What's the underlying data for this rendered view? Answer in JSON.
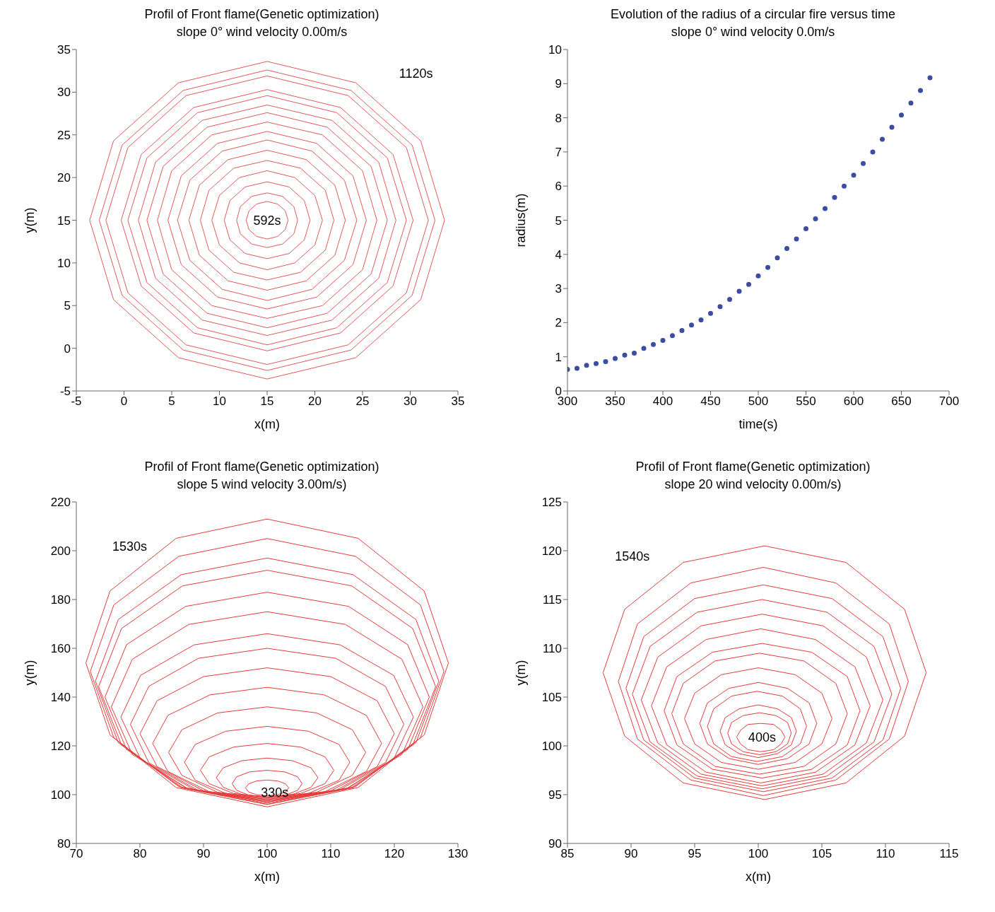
{
  "chart_data": [
    {
      "type": "line",
      "title": "Profil of Front flame(Genetic optimization)",
      "subtitle": "slope 0° wind velocity 0.00m/s",
      "xlabel": "x(m)",
      "ylabel": "y(m)",
      "marker": "none",
      "xlim": [
        -5,
        35
      ],
      "xticks": [
        -5,
        0,
        5,
        10,
        15,
        20,
        25,
        30,
        35
      ],
      "ylim": [
        -5,
        35
      ],
      "yticks": [
        -5,
        0,
        5,
        10,
        15,
        20,
        25,
        30,
        35
      ],
      "annotations": [
        "1120s",
        "592s"
      ],
      "series": [
        {
          "color": "#e05a5a",
          "x": [
            -3.6,
            -1.1,
            5.7,
            15,
            24.3,
            31.1,
            33.6
          ],
          "values": [
            15,
            24.3,
            31.1,
            33.6,
            31.1,
            24.3,
            15
          ]
        },
        {
          "color": "#e05a5a",
          "x": [
            -3.6,
            -1.1,
            5.7,
            15,
            24.3,
            31.1,
            33.6
          ],
          "values": [
            15,
            5.7,
            -1.1,
            -3.6,
            -1.1,
            5.7,
            15
          ]
        },
        {
          "color": "#e05a5a",
          "x": [
            -2.6,
            -0.2,
            6.2,
            15,
            23.8,
            30.2,
            32.6
          ],
          "values": [
            15,
            23.8,
            30.2,
            32.6,
            30.2,
            23.8,
            15
          ]
        },
        {
          "color": "#e05a5a",
          "x": [
            -2.6,
            -0.2,
            6.2,
            15,
            23.8,
            30.2,
            32.6
          ],
          "values": [
            15,
            6.2,
            -0.2,
            -2.6,
            -0.2,
            6.2,
            15
          ]
        },
        {
          "color": "#e05a5a",
          "x": [
            -1.9,
            0.4,
            6.5,
            15,
            23.5,
            29.6,
            31.9
          ],
          "values": [
            15,
            23.5,
            29.6,
            31.9,
            29.6,
            23.5,
            15
          ]
        },
        {
          "color": "#e05a5a",
          "x": [
            -1.9,
            0.4,
            6.5,
            15,
            23.5,
            29.6,
            31.9
          ],
          "values": [
            15,
            6.5,
            0.4,
            -1.9,
            0.4,
            6.5,
            15
          ]
        },
        {
          "color": "#e05a5a",
          "x": [
            -0.3,
            1.8,
            7.3,
            15,
            22.7,
            28.2,
            30.3
          ],
          "values": [
            15,
            22.7,
            28.2,
            30.3,
            28.2,
            22.7,
            15
          ]
        },
        {
          "color": "#e05a5a",
          "x": [
            -0.3,
            1.8,
            7.3,
            15,
            22.7,
            28.2,
            30.3
          ],
          "values": [
            15,
            7.3,
            1.8,
            -0.3,
            1.8,
            7.3,
            15
          ]
        },
        {
          "color": "#e05a5a",
          "x": [
            0.4,
            2.4,
            7.7,
            15,
            22.3,
            27.6,
            29.6
          ],
          "values": [
            15,
            22.3,
            27.6,
            29.6,
            27.6,
            22.3,
            15
          ]
        },
        {
          "color": "#e05a5a",
          "x": [
            0.4,
            2.4,
            7.7,
            15,
            22.3,
            27.6,
            29.6
          ],
          "values": [
            15,
            7.7,
            2.4,
            0.4,
            2.4,
            7.7,
            15
          ]
        },
        {
          "color": "#e05a5a",
          "x": [
            1.5,
            3.3,
            8.2,
            15,
            21.8,
            26.7,
            28.5
          ],
          "values": [
            15,
            21.8,
            26.7,
            28.5,
            26.7,
            21.8,
            15
          ]
        },
        {
          "color": "#e05a5a",
          "x": [
            1.5,
            3.3,
            8.2,
            15,
            21.8,
            26.7,
            28.5
          ],
          "values": [
            15,
            8.2,
            3.3,
            1.5,
            3.3,
            8.2,
            15
          ]
        },
        {
          "color": "#e05a5a",
          "x": [
            2.4,
            4.1,
            8.7,
            15,
            21.3,
            25.9,
            27.6
          ],
          "values": [
            15,
            21.3,
            25.9,
            27.6,
            25.9,
            21.3,
            15
          ]
        },
        {
          "color": "#e05a5a",
          "x": [
            2.4,
            4.1,
            8.7,
            15,
            21.3,
            25.9,
            27.6
          ],
          "values": [
            15,
            8.7,
            4.1,
            2.4,
            4.1,
            8.7,
            15
          ]
        },
        {
          "color": "#e05a5a",
          "x": [
            3.5,
            5,
            9.2,
            15,
            20.8,
            25,
            26.5
          ],
          "values": [
            15,
            20.8,
            25,
            26.5,
            25,
            20.8,
            15
          ]
        },
        {
          "color": "#e05a5a",
          "x": [
            3.5,
            5,
            9.2,
            15,
            20.8,
            25,
            26.5
          ],
          "values": [
            15,
            9.2,
            5,
            3.5,
            5,
            9.2,
            15
          ]
        },
        {
          "color": "#e05a5a",
          "x": [
            4.6,
            6,
            9.8,
            15,
            20.2,
            24,
            25.4
          ],
          "values": [
            15,
            20.2,
            24,
            25.4,
            24,
            20.2,
            15
          ]
        },
        {
          "color": "#e05a5a",
          "x": [
            4.6,
            6,
            9.8,
            15,
            20.2,
            24,
            25.4
          ],
          "values": [
            15,
            9.8,
            6,
            4.6,
            6,
            9.8,
            15
          ]
        },
        {
          "color": "#e05a5a",
          "x": [
            5.6,
            6.9,
            10.3,
            15,
            19.7,
            23.1,
            24.4
          ],
          "values": [
            15,
            19.7,
            23.1,
            24.4,
            23.1,
            19.7,
            15
          ]
        },
        {
          "color": "#e05a5a",
          "x": [
            5.6,
            6.9,
            10.3,
            15,
            19.7,
            23.1,
            24.4
          ],
          "values": [
            15,
            10.3,
            6.9,
            5.6,
            6.9,
            10.3,
            15
          ]
        },
        {
          "color": "#e05a5a",
          "x": [
            6.8,
            7.9,
            10.9,
            15,
            19.1,
            22.1,
            23.2
          ],
          "values": [
            15,
            19.1,
            22.1,
            23.2,
            22.1,
            19.1,
            15
          ]
        },
        {
          "color": "#e05a5a",
          "x": [
            6.8,
            7.9,
            10.9,
            15,
            19.1,
            22.1,
            23.2
          ],
          "values": [
            15,
            10.9,
            7.9,
            6.8,
            7.9,
            10.9,
            15
          ]
        },
        {
          "color": "#e05a5a",
          "x": [
            8,
            8.9,
            11.5,
            15,
            18.5,
            21.1,
            22
          ],
          "values": [
            15,
            18.5,
            21.1,
            22,
            21.1,
            18.5,
            15
          ]
        },
        {
          "color": "#e05a5a",
          "x": [
            8,
            8.9,
            11.5,
            15,
            18.5,
            21.1,
            22
          ],
          "values": [
            15,
            11.5,
            8.9,
            8,
            8.9,
            11.5,
            15
          ]
        },
        {
          "color": "#e05a5a",
          "x": [
            9.2,
            10,
            12.1,
            15,
            17.9,
            20,
            20.8
          ],
          "values": [
            15,
            17.9,
            20,
            20.8,
            20,
            17.9,
            15
          ]
        },
        {
          "color": "#e05a5a",
          "x": [
            9.2,
            10,
            12.1,
            15,
            17.9,
            20,
            20.8
          ],
          "values": [
            15,
            12.1,
            10,
            9.2,
            10,
            12.1,
            15
          ]
        },
        {
          "color": "#e05a5a",
          "x": [
            10.5,
            11.1,
            12.7,
            15,
            17.3,
            18.9,
            19.5
          ],
          "values": [
            15,
            17.3,
            18.9,
            19.5,
            18.9,
            17.3,
            15
          ]
        },
        {
          "color": "#e05a5a",
          "x": [
            10.5,
            11.1,
            12.7,
            15,
            17.3,
            18.9,
            19.5
          ],
          "values": [
            15,
            12.7,
            11.1,
            10.5,
            11.1,
            12.7,
            15
          ]
        },
        {
          "color": "#e05a5a",
          "x": [
            11.8,
            12.2,
            13.4,
            15,
            16.6,
            17.8,
            18.2
          ],
          "values": [
            15,
            16.6,
            17.8,
            18.2,
            17.8,
            16.6,
            15
          ]
        },
        {
          "color": "#e05a5a",
          "x": [
            11.8,
            12.2,
            13.4,
            15,
            16.6,
            17.8,
            18.2
          ],
          "values": [
            15,
            13.4,
            12.2,
            11.8,
            12.2,
            13.4,
            15
          ]
        },
        {
          "color": "#e05a5a",
          "x": [
            12.8,
            13.1,
            13.9,
            15,
            16.1,
            16.9,
            17.2
          ],
          "values": [
            15,
            16.1,
            16.9,
            17.2,
            16.9,
            16.1,
            15
          ]
        },
        {
          "color": "#e05a5a",
          "x": [
            12.8,
            13.1,
            13.9,
            15,
            16.1,
            16.9,
            17.2
          ],
          "values": [
            15,
            13.9,
            13.1,
            12.8,
            13.1,
            13.9,
            15
          ]
        }
      ]
    },
    {
      "type": "scatter",
      "title": "Evolution of the radius of a circular fire versus time",
      "subtitle": "slope 0° wind velocity 0.0m/s",
      "xlabel": "time(s)",
      "ylabel": "radius(m)",
      "marker": "circle",
      "xlim": [
        300,
        700
      ],
      "xticks": [
        300,
        350,
        400,
        450,
        500,
        550,
        600,
        650,
        700
      ],
      "ylim": [
        0,
        10
      ],
      "yticks": [
        0,
        1,
        2,
        3,
        4,
        5,
        6,
        7,
        8,
        9,
        10
      ],
      "x": [
        300,
        310,
        320,
        330,
        340,
        350,
        360,
        370,
        380,
        390,
        400,
        410,
        420,
        430,
        440,
        450,
        460,
        470,
        480,
        490,
        500,
        510,
        520,
        530,
        540,
        550,
        560,
        570,
        580,
        590,
        600,
        610,
        620,
        630,
        640,
        650,
        660,
        670,
        680
      ],
      "series": [
        {
          "color": "#3a4d9e",
          "values": [
            0.63,
            0.66,
            0.75,
            0.8,
            0.86,
            0.95,
            1.05,
            1.11,
            1.25,
            1.36,
            1.48,
            1.62,
            1.77,
            1.93,
            2.08,
            2.27,
            2.47,
            2.68,
            2.92,
            3.12,
            3.37,
            3.62,
            3.9,
            4.17,
            4.45,
            4.75,
            5.04,
            5.34,
            5.67,
            6.0,
            6.32,
            6.66,
            7.0,
            7.37,
            7.72,
            8.08,
            8.43,
            8.8,
            9.17
          ]
        }
      ]
    },
    {
      "type": "line",
      "title": "Profil of Front flame(Genetic optimization)",
      "subtitle": "slope 5 wind velocity 3.00m/s)",
      "xlabel": "x(m)",
      "ylabel": "y(m)",
      "marker": "none",
      "xlim": [
        70,
        130
      ],
      "xticks": [
        70,
        80,
        90,
        100,
        110,
        120,
        130
      ],
      "ylim": [
        80,
        220
      ],
      "yticks": [
        80,
        100,
        120,
        140,
        160,
        180,
        200,
        220
      ],
      "annotations": [
        "1530s",
        "330s"
      ],
      "series": [
        {
          "color": "#e43c3c",
          "x": [
            96.6,
            97.1,
            98.3,
            100,
            101.7,
            102.9,
            103.4
          ],
          "values": [
            102.8,
            104.4,
            105.6,
            106,
            105.6,
            104.4,
            102.8
          ]
        },
        {
          "color": "#e43c3c",
          "x": [
            96.6,
            97.1,
            98.3,
            100,
            101.7,
            102.9,
            103.4
          ],
          "values": [
            102.8,
            101.1,
            100,
            99.5,
            100,
            101.1,
            102.8
          ]
        },
        {
          "color": "#e43c3c",
          "x": [
            94.5,
            95.2,
            97.2,
            100,
            102.8,
            104.8,
            105.5
          ],
          "values": [
            104.5,
            107.3,
            109.3,
            110,
            109.3,
            107.3,
            104.5
          ]
        },
        {
          "color": "#e43c3c",
          "x": [
            94.5,
            95.2,
            97.2,
            100,
            102.8,
            104.8,
            105.5
          ],
          "values": [
            104.5,
            101.8,
            99.7,
            99,
            99.7,
            101.8,
            104.5
          ]
        },
        {
          "color": "#e43c3c",
          "x": [
            92,
            93.1,
            96,
            100,
            104,
            106.9,
            108
          ],
          "values": [
            107,
            111,
            113.9,
            115,
            113.9,
            111,
            107
          ]
        },
        {
          "color": "#e43c3c",
          "x": [
            92,
            93.1,
            96,
            100,
            104,
            106.9,
            108
          ],
          "values": [
            107,
            103,
            100.1,
            99,
            100.1,
            103,
            107
          ]
        },
        {
          "color": "#e43c3c",
          "x": [
            89.5,
            90.9,
            94.7,
            100,
            105.3,
            109.1,
            110.5
          ],
          "values": [
            110,
            115.5,
            119.5,
            121,
            119.5,
            115.5,
            110
          ]
        },
        {
          "color": "#e43c3c",
          "x": [
            89.5,
            90.9,
            94.7,
            100,
            105.3,
            109.1,
            110.5
          ],
          "values": [
            110,
            104.5,
            100.5,
            99,
            100.5,
            104.5,
            110
          ]
        },
        {
          "color": "#e43c3c",
          "x": [
            87,
            88.7,
            93.5,
            100,
            106.5,
            111.3,
            113
          ],
          "values": [
            113.3,
            120.6,
            126,
            128,
            126,
            120.6,
            113.3
          ]
        },
        {
          "color": "#e43c3c",
          "x": [
            87,
            88.7,
            93.5,
            100,
            106.5,
            111.3,
            113
          ],
          "values": [
            113.3,
            105.9,
            100.5,
            98.5,
            100.5,
            105.9,
            113.3
          ]
        },
        {
          "color": "#e43c3c",
          "x": [
            84.5,
            86.6,
            92.2,
            100,
            107.8,
            113.4,
            115.5
          ],
          "values": [
            117.3,
            126.6,
            133.5,
            136,
            133.5,
            126.6,
            117.3
          ]
        },
        {
          "color": "#e43c3c",
          "x": [
            84.5,
            86.6,
            92.2,
            100,
            107.8,
            113.4,
            115.5
          ],
          "values": [
            117.3,
            107.9,
            101,
            98.5,
            101,
            107.9,
            117.3
          ]
        },
        {
          "color": "#e43c3c",
          "x": [
            82,
            84.4,
            91,
            100,
            109,
            115.6,
            118
          ],
          "values": [
            121,
            132.5,
            140.9,
            144,
            140.9,
            132.5,
            121
          ]
        },
        {
          "color": "#e43c3c",
          "x": [
            82,
            84.4,
            91,
            100,
            109,
            115.6,
            118
          ],
          "values": [
            121,
            109.5,
            101.1,
            98,
            101.1,
            109.5,
            121
          ]
        },
        {
          "color": "#e43c3c",
          "x": [
            80,
            82.7,
            90,
            100,
            110,
            117.3,
            120
          ],
          "values": [
            125,
            138.5,
            148.4,
            152,
            148.4,
            138.5,
            125
          ]
        },
        {
          "color": "#e43c3c",
          "x": [
            80,
            82.7,
            90,
            100,
            110,
            117.3,
            120
          ],
          "values": [
            125,
            111.5,
            101.6,
            98,
            101.6,
            111.5,
            125
          ]
        },
        {
          "color": "#e43c3c",
          "x": [
            78.5,
            81.4,
            89.2,
            100,
            110.8,
            118.6,
            121.5
          ],
          "values": [
            128.8,
            144.4,
            155.9,
            160,
            155.9,
            144.4,
            128.8
          ]
        },
        {
          "color": "#e43c3c",
          "x": [
            78.5,
            81.4,
            89.2,
            100,
            110.8,
            118.6,
            121.5
          ],
          "values": [
            128.8,
            113.1,
            101.7,
            97.5,
            101.7,
            113.1,
            128.8
          ]
        },
        {
          "color": "#e43c3c",
          "x": [
            77,
            80.1,
            88.5,
            100,
            111.5,
            119.9,
            123
          ],
          "values": [
            131.8,
            148.9,
            161.4,
            166,
            161.4,
            148.9,
            131.8
          ]
        },
        {
          "color": "#e43c3c",
          "x": [
            77,
            80.1,
            88.5,
            100,
            111.5,
            119.9,
            123
          ],
          "values": [
            131.8,
            114.6,
            102.1,
            97.5,
            102.1,
            114.6,
            131.8
          ]
        },
        {
          "color": "#e43c3c",
          "x": [
            75.5,
            78.8,
            87.7,
            100,
            112.3,
            121.2,
            124.5
          ],
          "values": [
            136,
            155.5,
            169.8,
            175,
            169.8,
            155.5,
            136
          ]
        },
        {
          "color": "#e43c3c",
          "x": [
            75.5,
            78.8,
            87.7,
            100,
            112.3,
            121.2,
            124.5
          ],
          "values": [
            136,
            116.5,
            102.2,
            97,
            102.2,
            116.5,
            136
          ]
        },
        {
          "color": "#e43c3c",
          "x": [
            74.5,
            77.9,
            87.2,
            100,
            112.8,
            122.1,
            125.5
          ],
          "values": [
            140,
            161.5,
            177.2,
            183,
            177.2,
            161.5,
            140
          ]
        },
        {
          "color": "#e43c3c",
          "x": [
            74.5,
            77.9,
            87.2,
            100,
            112.8,
            122.1,
            125.5
          ],
          "values": [
            140,
            118.5,
            102.8,
            97,
            102.8,
            118.5,
            140
          ]
        },
        {
          "color": "#e43c3c",
          "x": [
            73.5,
            77.1,
            86.7,
            100,
            113.3,
            122.9,
            126.5
          ],
          "values": [
            144.3,
            168.1,
            185.6,
            192,
            185.6,
            168.1,
            144.3
          ]
        },
        {
          "color": "#e43c3c",
          "x": [
            73.5,
            77.1,
            86.7,
            100,
            113.3,
            122.9,
            126.5
          ],
          "values": [
            144.3,
            120.4,
            102.9,
            96.5,
            102.9,
            120.4,
            144.3
          ]
        },
        {
          "color": "#e43c3c",
          "x": [
            73,
            76.6,
            86.5,
            100,
            113.5,
            123.4,
            127
          ],
          "values": [
            146.5,
            171.8,
            190.2,
            197,
            190.2,
            171.8,
            146.5
          ]
        },
        {
          "color": "#e43c3c",
          "x": [
            73,
            76.6,
            86.5,
            100,
            113.5,
            123.4,
            127
          ],
          "values": [
            146.5,
            121.3,
            102.8,
            96,
            102.8,
            121.3,
            146.5
          ]
        },
        {
          "color": "#e43c3c",
          "x": [
            72.2,
            75.9,
            86.1,
            100,
            113.9,
            124.1,
            127.8
          ],
          "values": [
            150.5,
            177.8,
            197.7,
            205,
            197.7,
            177.8,
            150.5
          ]
        },
        {
          "color": "#e43c3c",
          "x": [
            72.2,
            75.9,
            86.1,
            100,
            113.9,
            124.1,
            127.8
          ],
          "values": [
            150.5,
            123.3,
            103.3,
            96,
            103.3,
            123.3,
            150.5
          ]
        },
        {
          "color": "#e43c3c",
          "x": [
            71.5,
            75.3,
            85.7,
            100,
            114.3,
            124.7,
            128.5
          ],
          "values": [
            154,
            183.5,
            205.1,
            213,
            205.1,
            183.5,
            154
          ]
        },
        {
          "color": "#e43c3c",
          "x": [
            71.5,
            75.3,
            85.7,
            100,
            114.3,
            124.7,
            128.5
          ],
          "values": [
            154,
            124.5,
            102.9,
            95,
            102.9,
            124.5,
            154
          ]
        }
      ]
    },
    {
      "type": "line",
      "title": "Profil of Front flame(Genetic optimization)",
      "subtitle": "slope 20 wind velocity 0.00m/s)",
      "xlabel": "x(m)",
      "ylabel": "y(m)",
      "marker": "none",
      "xlim": [
        85,
        115
      ],
      "xticks": [
        85,
        90,
        95,
        100,
        105,
        110,
        115
      ],
      "ylim": [
        90,
        125
      ],
      "yticks": [
        90,
        95,
        100,
        105,
        110,
        115,
        120,
        125
      ],
      "annotations": [
        "1540s",
        "400s"
      ],
      "series": [
        {
          "color": "#e43c3c",
          "x": [
            98.3,
            98.6,
            99.2,
            100.2,
            101.2,
            101.8,
            102.1
          ],
          "values": [
            100.9,
            101.6,
            102.2,
            102.3,
            102.2,
            101.6,
            100.9
          ]
        },
        {
          "color": "#e43c3c",
          "x": [
            98.3,
            98.6,
            99.2,
            100.2,
            101.2,
            101.8,
            102.1
          ],
          "values": [
            100.9,
            100.2,
            99.6,
            99.4,
            99.6,
            100.2,
            100.9
          ]
        },
        {
          "color": "#e43c3c",
          "x": [
            97.6,
            97.9,
            98.8,
            100.1,
            101.4,
            102.3,
            102.6
          ],
          "values": [
            101.3,
            102.4,
            103.1,
            103.4,
            103.1,
            102.4,
            101.3
          ]
        },
        {
          "color": "#e43c3c",
          "x": [
            97.6,
            97.9,
            98.8,
            100.1,
            101.4,
            102.3,
            102.6
          ],
          "values": [
            101.3,
            100.2,
            99.4,
            99.1,
            99.4,
            100.2,
            101.3
          ]
        },
        {
          "color": "#e43c3c",
          "x": [
            97,
            97.4,
            98.5,
            100,
            101.5,
            102.6,
            103
          ],
          "values": [
            101.5,
            102.9,
            103.8,
            104.2,
            103.8,
            102.9,
            101.5
          ]
        },
        {
          "color": "#e43c3c",
          "x": [
            97,
            97.4,
            98.5,
            100,
            101.5,
            102.6,
            103
          ],
          "values": [
            101.5,
            100.1,
            99.2,
            98.8,
            99.2,
            100.1,
            101.5
          ]
        },
        {
          "color": "#e43c3c",
          "x": [
            96,
            96.5,
            97.9,
            99.9,
            101.9,
            103.3,
            103.8
          ],
          "values": [
            102,
            103.8,
            105.1,
            105.6,
            105.1,
            103.8,
            102
          ]
        },
        {
          "color": "#e43c3c",
          "x": [
            96,
            96.5,
            97.9,
            99.9,
            101.9,
            103.3,
            103.8
          ],
          "values": [
            102,
            100.2,
            98.9,
            98.4,
            98.9,
            100.2,
            102
          ]
        },
        {
          "color": "#e43c3c",
          "x": [
            95.4,
            96,
            97.7,
            100,
            102.3,
            104,
            104.6
          ],
          "values": [
            102.3,
            104.4,
            105.9,
            106.5,
            105.9,
            104.4,
            102.3
          ]
        },
        {
          "color": "#e43c3c",
          "x": [
            95.4,
            96,
            97.7,
            100,
            102.3,
            104,
            104.6
          ],
          "values": [
            102.3,
            100.2,
            98.7,
            98.1,
            98.7,
            100.2,
            102.3
          ]
        },
        {
          "color": "#e43c3c",
          "x": [
            94.2,
            95,
            97.1,
            100,
            102.9,
            105,
            105.8
          ],
          "values": [
            102.8,
            105.4,
            107.3,
            108,
            107.3,
            105.4,
            102.8
          ]
        },
        {
          "color": "#e43c3c",
          "x": [
            94.2,
            95,
            97.1,
            100,
            102.9,
            105,
            105.8
          ],
          "values": [
            102.8,
            100.2,
            98.3,
            97.6,
            98.3,
            100.2,
            102.8
          ]
        },
        {
          "color": "#e43c3c",
          "x": [
            93.2,
            94.1,
            96.6,
            100.1,
            103.6,
            106.1,
            107
          ],
          "values": [
            103.3,
            106.4,
            108.7,
            109.5,
            108.7,
            106.4,
            103.3
          ]
        },
        {
          "color": "#e43c3c",
          "x": [
            93.2,
            94.1,
            96.6,
            100.1,
            103.6,
            106.1,
            107
          ],
          "values": [
            103.3,
            100.2,
            97.9,
            97.1,
            97.9,
            100.2,
            103.3
          ]
        },
        {
          "color": "#e43c3c",
          "x": [
            92.6,
            93.6,
            96.4,
            100.3,
            104.2,
            107,
            108
          ],
          "values": [
            103.6,
            107.1,
            109.6,
            110.5,
            109.6,
            107.1,
            103.6
          ]
        },
        {
          "color": "#e43c3c",
          "x": [
            92.6,
            93.6,
            96.4,
            100.3,
            104.2,
            107,
            108
          ],
          "values": [
            103.6,
            100.1,
            97.6,
            96.7,
            97.6,
            100.1,
            103.6
          ]
        },
        {
          "color": "#e43c3c",
          "x": [
            91.6,
            92.8,
            95.9,
            100.2,
            104.5,
            107.6,
            108.8
          ],
          "values": [
            104.1,
            108.1,
            110.9,
            112,
            110.9,
            108.1,
            104.1
          ]
        },
        {
          "color": "#e43c3c",
          "x": [
            91.6,
            92.8,
            95.9,
            100.2,
            104.5,
            107.6,
            108.8
          ],
          "values": [
            104.1,
            100.1,
            97.3,
            96.2,
            97.3,
            100.1,
            104.1
          ]
        },
        {
          "color": "#e43c3c",
          "x": [
            90.8,
            92.1,
            95.5,
            100.3,
            105.1,
            108.5,
            109.8
          ],
          "values": [
            104.7,
            109.1,
            112.3,
            113.5,
            112.3,
            109.1,
            104.7
          ]
        },
        {
          "color": "#e43c3c",
          "x": [
            90.8,
            92.1,
            95.5,
            100.3,
            105.1,
            108.5,
            109.8
          ],
          "values": [
            104.7,
            100.3,
            97.1,
            95.9,
            97.1,
            100.3,
            104.7
          ]
        },
        {
          "color": "#e43c3c",
          "x": [
            90.1,
            91.5,
            95.2,
            100.3,
            105.4,
            109.1,
            110.5
          ],
          "values": [
            105.3,
            110.2,
            113.7,
            115,
            113.7,
            110.2,
            105.3
          ]
        },
        {
          "color": "#e43c3c",
          "x": [
            90.1,
            91.5,
            95.2,
            100.3,
            105.4,
            109.1,
            110.5
          ],
          "values": [
            105.3,
            100.4,
            96.9,
            95.6,
            96.9,
            100.4,
            105.3
          ]
        },
        {
          "color": "#e43c3c",
          "x": [
            89.6,
            91,
            95,
            100.4,
            105.8,
            109.8,
            111.2
          ],
          "values": [
            105.9,
            111.2,
            115.1,
            116.5,
            115.1,
            111.2,
            105.9
          ]
        },
        {
          "color": "#e43c3c",
          "x": [
            89.6,
            91,
            95,
            100.4,
            105.8,
            109.8,
            111.2
          ],
          "values": [
            105.9,
            100.6,
            96.7,
            95.3,
            96.7,
            100.6,
            105.9
          ]
        },
        {
          "color": "#e43c3c",
          "x": [
            89,
            90.5,
            94.7,
            100.4,
            106.1,
            110.3,
            111.8
          ],
          "values": [
            106.6,
            112.5,
            116.7,
            118.3,
            116.7,
            112.5,
            106.6
          ]
        },
        {
          "color": "#e43c3c",
          "x": [
            89,
            90.5,
            94.7,
            100.4,
            106.1,
            110.3,
            111.8
          ],
          "values": [
            106.6,
            100.7,
            96.5,
            94.9,
            96.5,
            100.7,
            106.6
          ]
        },
        {
          "color": "#e43c3c",
          "x": [
            87.8,
            89.5,
            94.1,
            100.5,
            106.9,
            111.5,
            113.2
          ],
          "values": [
            107.5,
            114,
            118.8,
            120.5,
            118.8,
            114,
            107.5
          ]
        },
        {
          "color": "#e43c3c",
          "x": [
            87.8,
            89.5,
            94.1,
            100.5,
            106.9,
            111.5,
            113.2
          ],
          "values": [
            107.5,
            101,
            96.2,
            94.5,
            96.2,
            101,
            107.5
          ]
        }
      ]
    }
  ]
}
